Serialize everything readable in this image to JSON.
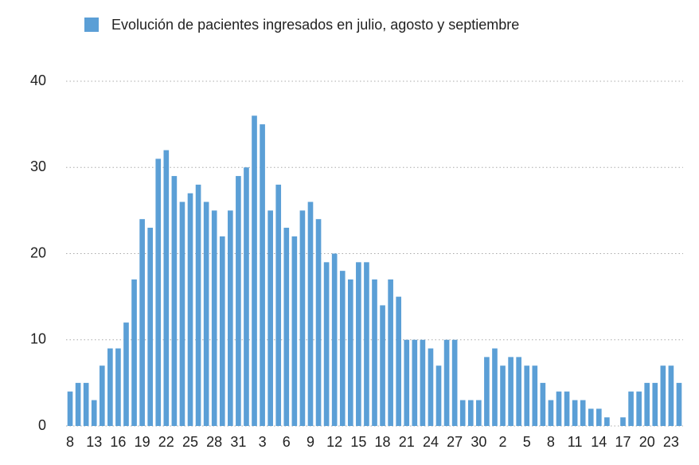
{
  "chart_data": {
    "type": "bar",
    "categories": [
      "8",
      null,
      null,
      "13",
      null,
      null,
      "16",
      null,
      null,
      "19",
      null,
      null,
      "22",
      null,
      null,
      "25",
      null,
      null,
      "28",
      null,
      null,
      "31",
      null,
      null,
      "3",
      null,
      null,
      "6",
      null,
      null,
      "9",
      null,
      null,
      "12",
      null,
      null,
      "15",
      null,
      null,
      "18",
      null,
      null,
      "21",
      null,
      null,
      "24",
      null,
      null,
      "27",
      null,
      null,
      "30",
      null,
      null,
      "2",
      null,
      null,
      "5",
      null,
      null,
      "8",
      null,
      null,
      "11",
      null,
      null,
      "14",
      null,
      null,
      "17",
      null,
      null,
      "20",
      null,
      null,
      "23",
      null
    ],
    "series": [
      {
        "name": "Evolución de pacientes ingresados en julio, agosto y septiembre",
        "color": "#5b9fd6",
        "values": [
          4,
          5,
          5,
          3,
          7,
          9,
          9,
          12,
          17,
          24,
          23,
          31,
          32,
          29,
          26,
          27,
          28,
          26,
          25,
          22,
          25,
          29,
          30,
          36,
          35,
          25,
          28,
          23,
          22,
          25,
          26,
          24,
          19,
          20,
          18,
          17,
          19,
          19,
          17,
          14,
          17,
          15,
          10,
          10,
          10,
          9,
          7,
          10,
          10,
          3,
          3,
          3,
          8,
          9,
          7,
          8,
          8,
          7,
          7,
          5,
          3,
          4,
          4,
          3,
          3,
          2,
          2,
          1,
          0,
          1,
          4,
          4,
          5,
          5,
          7,
          7,
          5
        ]
      }
    ],
    "ylim": [
      0,
      40
    ],
    "yticks": [
      0,
      10,
      20,
      30,
      40
    ],
    "grid": true
  }
}
